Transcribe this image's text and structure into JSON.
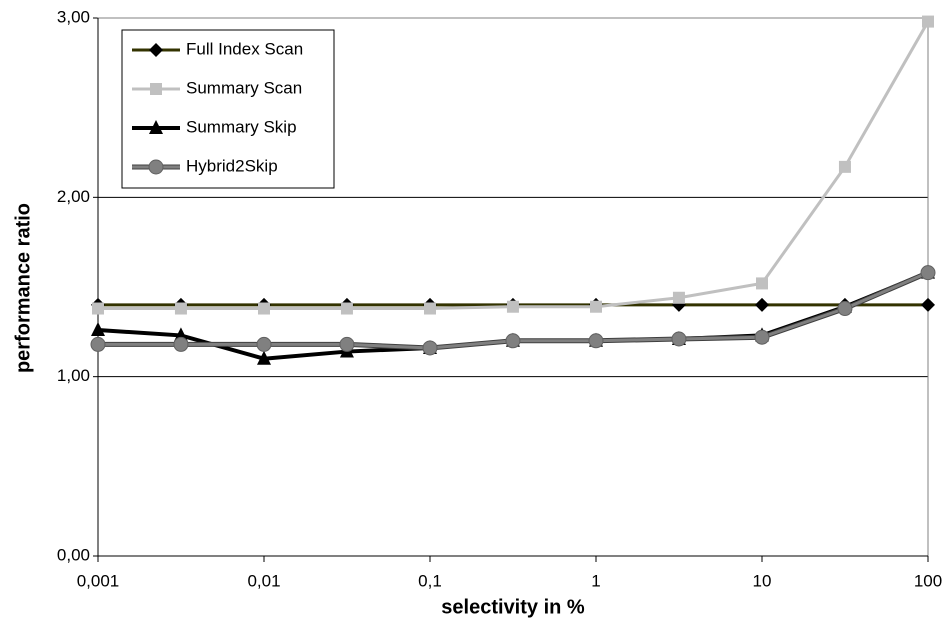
{
  "chart_data": {
    "type": "line",
    "x_label": "selectivity in %",
    "y_label": "performance ratio",
    "xscale": "log",
    "grid": true,
    "legend": "top-left",
    "xlim": [
      0.001,
      100
    ],
    "xticks": [
      {
        "value": 0.001,
        "label": "0,001"
      },
      {
        "value": 0.01,
        "label": "0,01"
      },
      {
        "value": 0.1,
        "label": "0,1"
      },
      1,
      10,
      100
    ],
    "ylim": [
      0,
      3
    ],
    "yticks": [
      {
        "value": 0,
        "label": "0,00"
      },
      {
        "value": 1,
        "label": "1,00"
      },
      {
        "value": 2,
        "label": "2,00"
      },
      {
        "value": 3,
        "label": "3,00"
      }
    ],
    "x": [
      0.001,
      0.00316,
      0.01,
      0.0316,
      0.1,
      0.316,
      1,
      3.16,
      10,
      31.6,
      100
    ],
    "series": [
      {
        "name": "Full Index Scan",
        "color": "#333300",
        "marker": "diamond",
        "marker_color": "#000000",
        "values": [
          1.4,
          1.4,
          1.4,
          1.4,
          1.4,
          1.4,
          1.4,
          1.4,
          1.4,
          1.4,
          1.4
        ]
      },
      {
        "name": "Summary Scan",
        "color": "#c0c0c0",
        "marker": "square",
        "marker_color": "#c0c0c0",
        "values": [
          1.38,
          1.38,
          1.38,
          1.38,
          1.38,
          1.39,
          1.39,
          1.44,
          1.52,
          2.17,
          2.98
        ]
      },
      {
        "name": "Summary Skip",
        "color": "#000000",
        "marker": "triangle",
        "marker_color": "#000000",
        "values": [
          1.26,
          1.23,
          1.1,
          1.14,
          1.16,
          1.2,
          1.2,
          1.21,
          1.23,
          1.39,
          1.58
        ]
      },
      {
        "name": "Hybrid2Skip",
        "color": "#808080",
        "marker": "circle",
        "marker_color": "#808080",
        "values": [
          1.18,
          1.18,
          1.18,
          1.18,
          1.16,
          1.2,
          1.2,
          1.21,
          1.22,
          1.38,
          1.58
        ]
      }
    ]
  }
}
